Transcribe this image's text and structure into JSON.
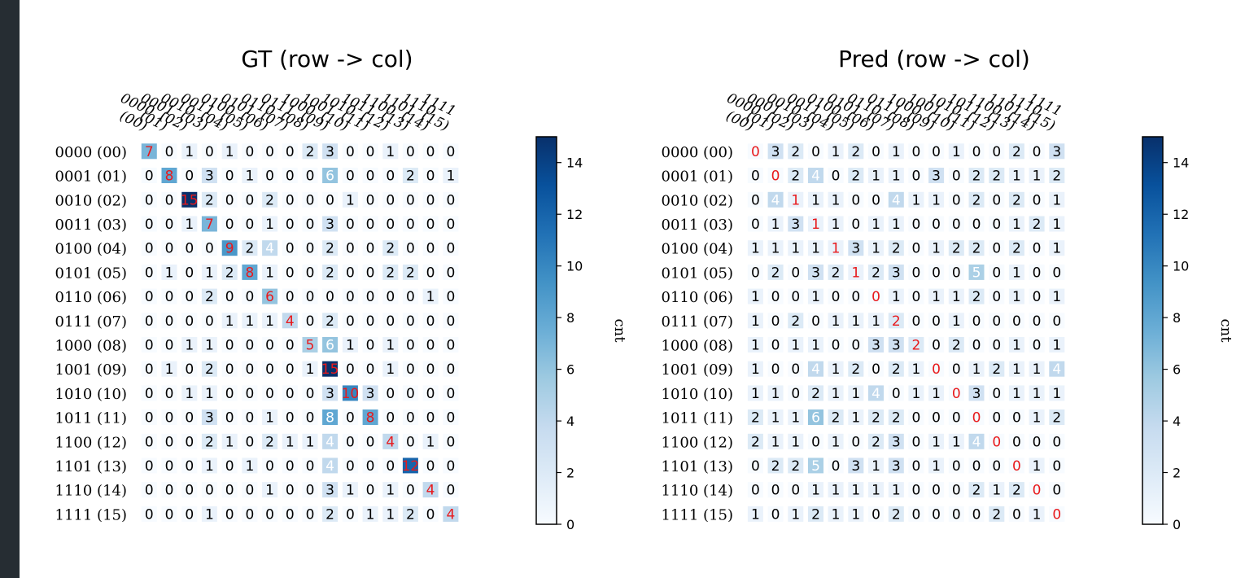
{
  "colors": {
    "sidebar": "#262d33",
    "diag_text": "#e8191c",
    "cell_text_dark": "#000000",
    "cell_text_light": "#ffffff",
    "cmap": [
      "#f7fbff",
      "#deebf7",
      "#c6dbef",
      "#9ecae1",
      "#6baed6",
      "#4292c6",
      "#2171b5",
      "#08519c",
      "#08306b"
    ]
  },
  "chart_data": [
    {
      "type": "heatmap",
      "title": "GT (row -> col)",
      "row_labels": [
        "0000  (00)",
        "0001  (01)",
        "0010  (02)",
        "0011  (03)",
        "0100  (04)",
        "0101  (05)",
        "0110  (06)",
        "0111  (07)",
        "1000  (08)",
        "1001  (09)",
        "1010  (10)",
        "1011  (11)",
        "1100  (12)",
        "1101  (13)",
        "1110  (14)",
        "1111  (15)"
      ],
      "col_labels": [
        "0000\n(00)",
        "0001\n(01)",
        "0010\n(02)",
        "0011\n(03)",
        "0100\n(04)",
        "0101\n(05)",
        "0110\n(06)",
        "0111\n(07)",
        "1000\n(08)",
        "1001\n(09)",
        "1010\n(10)",
        "1011\n(11)",
        "1100\n(12)",
        "1101\n(13)",
        "1110\n(14)",
        "1111\n(15)"
      ],
      "values": [
        [
          7,
          0,
          1,
          0,
          1,
          0,
          0,
          0,
          2,
          3,
          0,
          0,
          1,
          0,
          0,
          0
        ],
        [
          0,
          8,
          0,
          3,
          0,
          1,
          0,
          0,
          0,
          6,
          0,
          0,
          0,
          2,
          0,
          1
        ],
        [
          0,
          0,
          15,
          2,
          0,
          0,
          2,
          0,
          0,
          0,
          1,
          0,
          0,
          0,
          0,
          0
        ],
        [
          0,
          0,
          1,
          7,
          0,
          0,
          1,
          0,
          0,
          3,
          0,
          0,
          0,
          0,
          0,
          0
        ],
        [
          0,
          0,
          0,
          0,
          9,
          2,
          4,
          0,
          0,
          2,
          0,
          0,
          2,
          0,
          0,
          0
        ],
        [
          0,
          1,
          0,
          1,
          2,
          8,
          1,
          0,
          0,
          2,
          0,
          0,
          2,
          2,
          0,
          0
        ],
        [
          0,
          0,
          0,
          2,
          0,
          0,
          6,
          0,
          0,
          0,
          0,
          0,
          0,
          0,
          1,
          0
        ],
        [
          0,
          0,
          0,
          0,
          1,
          1,
          1,
          4,
          0,
          2,
          0,
          0,
          0,
          0,
          0,
          0
        ],
        [
          0,
          0,
          1,
          1,
          0,
          0,
          0,
          0,
          5,
          6,
          1,
          0,
          1,
          0,
          0,
          0
        ],
        [
          0,
          1,
          0,
          2,
          0,
          0,
          0,
          0,
          1,
          15,
          0,
          0,
          1,
          0,
          0,
          0
        ],
        [
          0,
          0,
          1,
          1,
          0,
          0,
          0,
          0,
          0,
          3,
          10,
          3,
          0,
          0,
          0,
          0
        ],
        [
          0,
          0,
          0,
          3,
          0,
          0,
          1,
          0,
          0,
          8,
          0,
          8,
          0,
          0,
          0,
          0
        ],
        [
          0,
          0,
          0,
          2,
          1,
          0,
          2,
          1,
          1,
          4,
          0,
          0,
          4,
          0,
          1,
          0
        ],
        [
          0,
          0,
          0,
          1,
          0,
          1,
          0,
          0,
          0,
          4,
          0,
          0,
          0,
          12,
          0,
          0
        ],
        [
          0,
          0,
          0,
          0,
          0,
          0,
          1,
          0,
          0,
          3,
          1,
          0,
          1,
          0,
          4,
          0
        ],
        [
          0,
          0,
          0,
          1,
          0,
          0,
          0,
          0,
          0,
          2,
          0,
          1,
          1,
          2,
          0,
          4
        ]
      ],
      "colorbar": {
        "label": "cnt",
        "ticks": [
          "0",
          "2",
          "4",
          "6",
          "8",
          "10",
          "12",
          "14"
        ],
        "range": [
          0,
          15
        ]
      }
    },
    {
      "type": "heatmap",
      "title": "Pred (row -> col)",
      "row_labels": [
        "0000  (00)",
        "0001  (01)",
        "0010  (02)",
        "0011  (03)",
        "0100  (04)",
        "0101  (05)",
        "0110  (06)",
        "0111  (07)",
        "1000  (08)",
        "1001  (09)",
        "1010  (10)",
        "1011  (11)",
        "1100  (12)",
        "1101  (13)",
        "1110  (14)",
        "1111  (15)"
      ],
      "col_labels": [
        "0000\n(00)",
        "0001\n(01)",
        "0010\n(02)",
        "0011\n(03)",
        "0100\n(04)",
        "0101\n(05)",
        "0110\n(06)",
        "0111\n(07)",
        "1000\n(08)",
        "1001\n(09)",
        "1010\n(10)",
        "1011\n(11)",
        "1100\n(12)",
        "1101\n(13)",
        "1110\n(14)",
        "1111\n(15)"
      ],
      "values": [
        [
          0,
          3,
          2,
          0,
          1,
          2,
          0,
          1,
          0,
          0,
          1,
          0,
          0,
          2,
          0,
          3
        ],
        [
          0,
          0,
          2,
          4,
          0,
          2,
          1,
          1,
          0,
          3,
          0,
          2,
          2,
          1,
          1,
          2
        ],
        [
          0,
          4,
          1,
          1,
          1,
          0,
          0,
          4,
          1,
          1,
          0,
          2,
          0,
          2,
          0,
          1
        ],
        [
          0,
          1,
          3,
          1,
          1,
          0,
          1,
          1,
          0,
          0,
          0,
          0,
          0,
          1,
          2,
          1
        ],
        [
          1,
          1,
          1,
          1,
          1,
          3,
          1,
          2,
          0,
          1,
          2,
          2,
          0,
          2,
          0,
          1
        ],
        [
          0,
          2,
          0,
          3,
          2,
          1,
          2,
          3,
          0,
          0,
          0,
          5,
          0,
          1,
          0,
          0
        ],
        [
          1,
          0,
          0,
          1,
          0,
          0,
          0,
          1,
          0,
          1,
          1,
          2,
          0,
          1,
          0,
          1
        ],
        [
          1,
          0,
          2,
          0,
          1,
          1,
          1,
          2,
          0,
          0,
          1,
          0,
          0,
          0,
          0,
          0
        ],
        [
          1,
          0,
          1,
          1,
          0,
          0,
          3,
          3,
          2,
          0,
          2,
          0,
          0,
          1,
          0,
          1
        ],
        [
          1,
          0,
          0,
          4,
          1,
          2,
          0,
          2,
          1,
          0,
          0,
          1,
          2,
          1,
          1,
          4
        ],
        [
          1,
          1,
          0,
          2,
          1,
          1,
          4,
          0,
          1,
          1,
          0,
          3,
          0,
          1,
          1,
          1
        ],
        [
          2,
          1,
          1,
          6,
          2,
          1,
          2,
          2,
          0,
          0,
          0,
          0,
          0,
          0,
          1,
          2
        ],
        [
          2,
          1,
          1,
          0,
          1,
          0,
          2,
          3,
          0,
          1,
          1,
          4,
          0,
          0,
          0,
          0
        ],
        [
          0,
          2,
          2,
          5,
          0,
          3,
          1,
          3,
          0,
          1,
          0,
          0,
          0,
          0,
          1,
          0
        ],
        [
          0,
          0,
          0,
          1,
          1,
          1,
          1,
          1,
          0,
          0,
          0,
          2,
          1,
          2,
          0,
          0
        ],
        [
          1,
          0,
          1,
          2,
          1,
          1,
          0,
          2,
          0,
          0,
          0,
          0,
          2,
          0,
          1,
          0
        ]
      ],
      "colorbar": {
        "label": "cnt",
        "ticks": [
          "0",
          "2",
          "4",
          "6",
          "8",
          "10",
          "12",
          "14"
        ],
        "range": [
          0,
          15
        ]
      }
    }
  ]
}
